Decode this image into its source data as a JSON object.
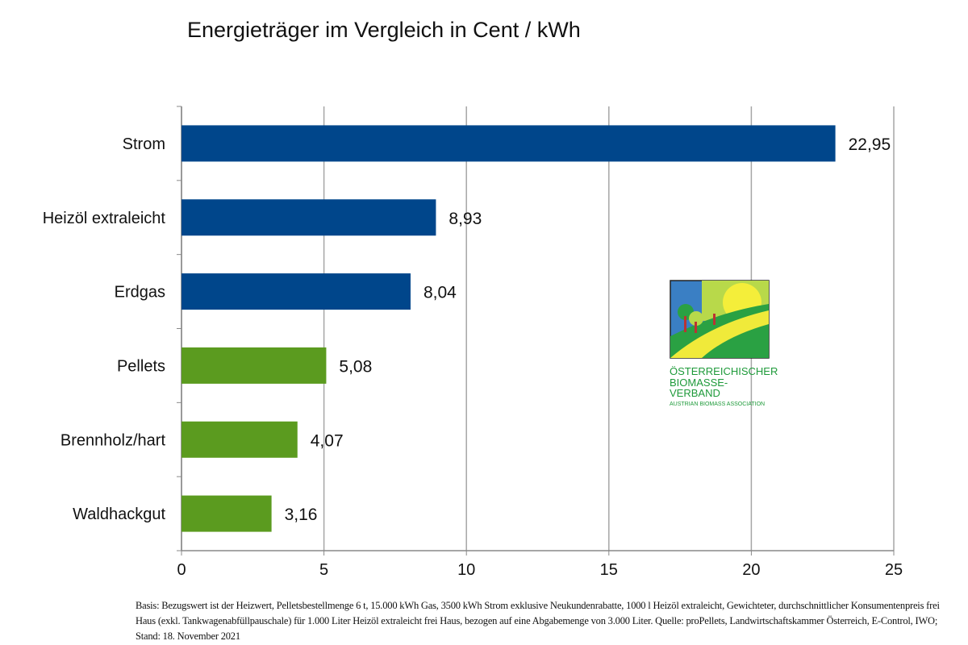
{
  "chart_data": {
    "type": "bar",
    "orientation": "horizontal",
    "title": "Energieträger im Vergleich in Cent / kWh",
    "categories": [
      "Strom",
      "Heizöl extraleicht",
      "Erdgas",
      "Pellets",
      "Brennholz/hart",
      "Waldhackgut"
    ],
    "values": [
      22.95,
      8.93,
      8.04,
      5.08,
      4.07,
      3.16
    ],
    "data_labels": [
      "22,95",
      "8,93",
      "8,04",
      "5,08",
      "4,07",
      "3,16"
    ],
    "bar_colors": [
      "#00468b",
      "#00468b",
      "#00468b",
      "#5b9b1f",
      "#5b9b1f",
      "#5b9b1f"
    ],
    "xlim": [
      0,
      25
    ],
    "xticks": [
      0,
      5,
      10,
      15,
      20,
      25
    ],
    "xtick_labels": [
      "0",
      "5",
      "10",
      "15",
      "20",
      "25"
    ],
    "grid": "vertical",
    "xlabel": "",
    "ylabel": ""
  },
  "footnote": "Basis: Bezugswert ist der Heizwert, Pelletsbestellmenge 6 t, 15.000 kWh Gas, 3500 kWh Strom exklusive Neukundenrabatte, 1000 l Heizöl extraleicht, Gewichteter, durchschnittlicher Konsumentenpreis frei Haus (exkl. Tankwagenabfüllpauschale) für 1.000 Liter Heizöl extraleicht frei Haus, bezogen auf eine Abgabemenge von 3.000 Liter. Quelle: proPellets, Landwirtschaftskammer Österreich, E-Control, IWO; Stand: 18. November 2021",
  "logo": {
    "line1": "Österreichischer",
    "line2": "Biomasse-Verband",
    "line3": "Austrian Biomass Association"
  }
}
